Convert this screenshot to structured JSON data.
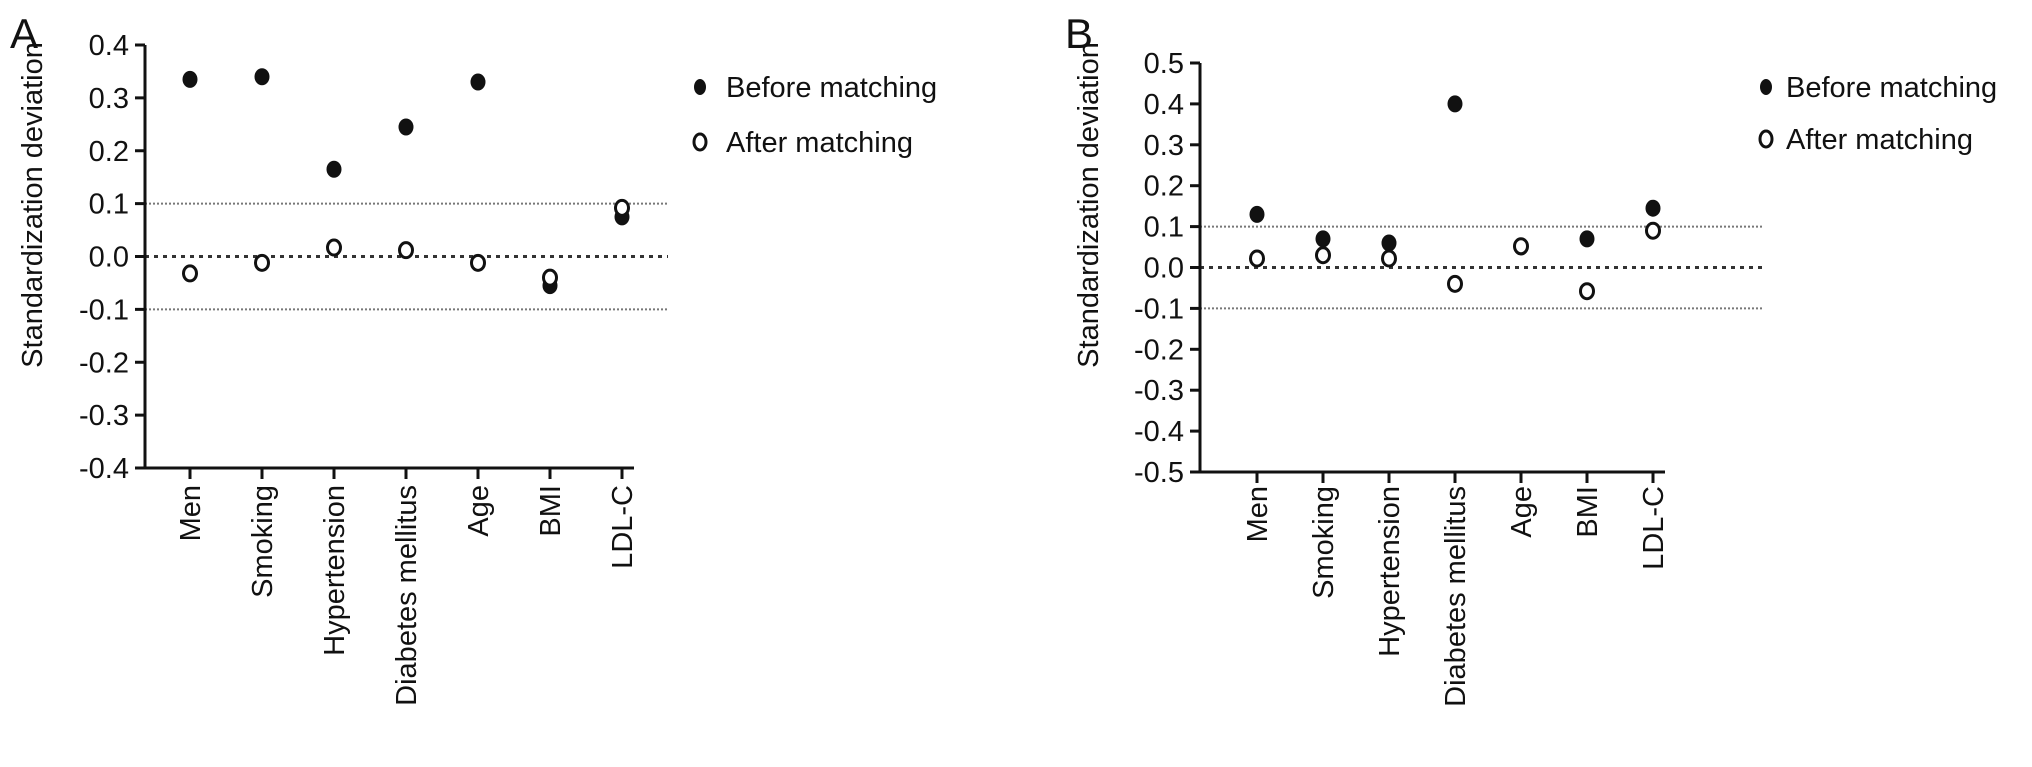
{
  "chart_data": [
    {
      "type": "scatter",
      "panel": "A",
      "ylabel": "Standardization deviation",
      "categories": [
        "Men",
        "Smoking",
        "Hypertension",
        "Diabetes mellitus",
        "Age",
        "BMI",
        "LDL-C"
      ],
      "ylim": [
        -0.4,
        0.4
      ],
      "yticks": [
        "0.4",
        "0.3",
        "0.2",
        "0.1",
        "0.0",
        "-0.1",
        "-0.2",
        "-0.3",
        "-0.4"
      ],
      "yticks_values": [
        0.4,
        0.3,
        0.2,
        0.1,
        0.0,
        -0.1,
        -0.2,
        -0.3,
        -0.4
      ],
      "reference_lines": [
        0.1,
        0.0,
        -0.1
      ],
      "series": [
        {
          "name": "Before matching",
          "marker": "filled",
          "values": [
            0.335,
            0.34,
            0.165,
            0.245,
            0.33,
            -0.055,
            0.075
          ]
        },
        {
          "name": "After matching",
          "marker": "open",
          "values": [
            -0.032,
            -0.012,
            0.017,
            0.012,
            -0.012,
            -0.04,
            0.092
          ]
        }
      ],
      "legend_position": "right"
    },
    {
      "type": "scatter",
      "panel": "B",
      "ylabel": "Standardization deviation",
      "categories": [
        "Men",
        "Smoking",
        "Hypertension",
        "Diabetes mellitus",
        "Age",
        "BMI",
        "LDL-C"
      ],
      "ylim": [
        -0.5,
        0.5
      ],
      "yticks": [
        "0.5",
        "0.4",
        "0.3",
        "0.2",
        "0.1",
        "0.0",
        "-0.1",
        "-0.2",
        "-0.3",
        "-0.4",
        "-0.5"
      ],
      "yticks_values": [
        0.5,
        0.4,
        0.3,
        0.2,
        0.1,
        0.0,
        -0.1,
        -0.2,
        -0.3,
        -0.4,
        -0.5
      ],
      "reference_lines": [
        0.1,
        0.0,
        -0.1
      ],
      "series": [
        {
          "name": "Before matching",
          "marker": "filled",
          "values": [
            0.13,
            0.07,
            0.06,
            0.4,
            0.05,
            0.07,
            0.145
          ]
        },
        {
          "name": "After matching",
          "marker": "open",
          "values": [
            0.022,
            0.03,
            0.022,
            -0.04,
            0.052,
            -0.058,
            0.09
          ]
        }
      ],
      "legend_position": "right"
    }
  ],
  "colors": {
    "axis": "#111111",
    "marker_fill": "#111111",
    "open_marker_fill": "#ffffff",
    "ref_line": "#555555"
  }
}
